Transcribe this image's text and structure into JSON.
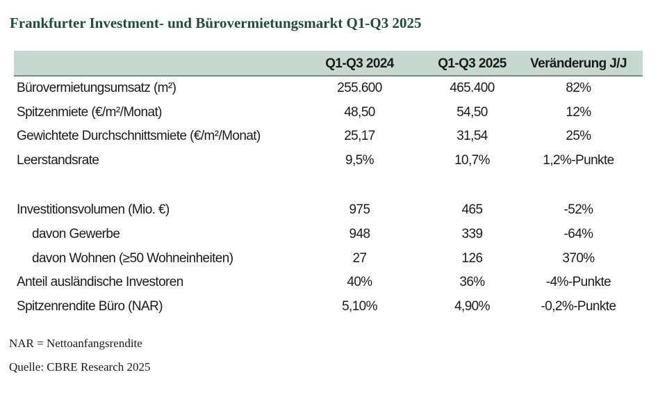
{
  "title": "Frankfurter Investment- und Bürovermietungsmarkt Q1-Q3 2025",
  "table": {
    "headers": [
      "",
      "Q1-Q3 2024",
      "Q1-Q3 2025",
      "Veränderung J/J"
    ],
    "rows": [
      [
        "Bürovermietungsumsatz (m²)",
        "255.600",
        "465.400",
        "82%"
      ],
      [
        "Spitzenmiete (€/m²/Monat)",
        "48,50",
        "54,50",
        "12%"
      ],
      [
        "Gewichtete Durchschnittsmiete (€/m²/Monat)",
        "25,17",
        "31,54",
        "25%"
      ],
      [
        "Leerstandsrate",
        "9,5%",
        "10,7%",
        "1,2%-Punkte"
      ],
      [
        "Investitionsvolumen (Mio. €)",
        "975",
        "465",
        "-52%"
      ],
      [
        "davon Gewerbe",
        "948",
        "339",
        "-64%"
      ],
      [
        "davon Wohnen (≥50 Wohneinheiten)",
        "27",
        "126",
        "370%"
      ],
      [
        "Anteil ausländische Investoren",
        "40%",
        "36%",
        "-4%-Punkte"
      ],
      [
        "Spitzenrendite Büro (NAR)",
        "5,10%",
        "4,90%",
        "-0,2%-Punkte"
      ]
    ]
  },
  "footnotes": {
    "abbreviation": "NAR = Nettoanfangsrendite",
    "source": "Quelle: CBRE Research 2025"
  },
  "colors": {
    "title": "#1f4d3d",
    "header_background": "#c7d8d0",
    "header_border": "#6f8f82"
  }
}
